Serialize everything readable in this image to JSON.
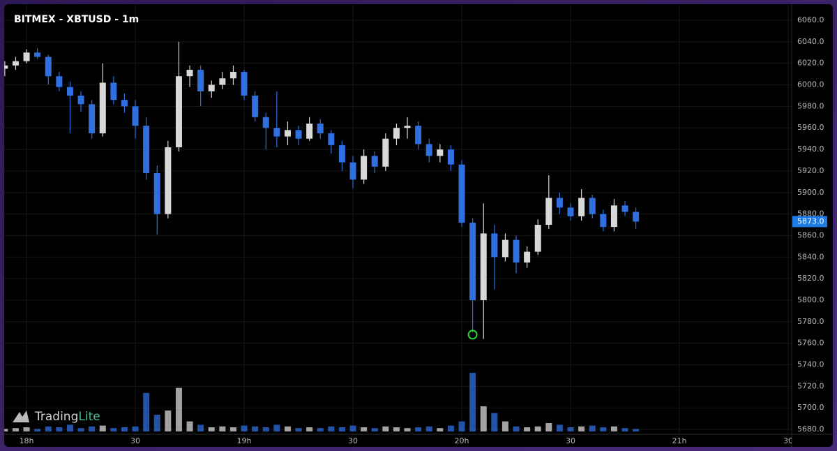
{
  "chart_data": {
    "type": "candlestick",
    "title": "BITMEX - XBTUSD - 1m",
    "watermark": [
      "Trading",
      "Lite"
    ],
    "x": [
      17.9,
      17.95,
      18,
      18.05,
      18.1,
      18.15,
      18.2,
      18.25,
      18.3,
      18.35,
      18.4,
      18.45,
      18.5,
      18.55,
      18.6,
      18.65,
      18.7,
      18.75,
      18.8,
      18.85,
      18.9,
      18.95,
      19,
      19.05,
      19.1,
      19.15,
      19.2,
      19.25,
      19.3,
      19.35,
      19.4,
      19.45,
      19.5,
      19.55,
      19.6,
      19.65,
      19.7,
      19.75,
      19.8,
      19.85,
      19.9,
      19.95,
      20,
      20.05,
      20.1,
      20.15,
      20.2,
      20.25,
      20.3,
      20.35,
      20.4,
      20.45,
      20.5,
      20.55,
      20.6,
      20.65,
      20.7,
      20.75,
      20.8
    ],
    "open": [
      6015,
      6018,
      6022,
      6030,
      6026,
      6008,
      5998,
      5990,
      5982,
      5955,
      6002,
      5986,
      5980,
      5962,
      5918,
      5880,
      5942,
      6008,
      6014,
      5994,
      6000,
      6006,
      6012,
      5990,
      5970,
      5960,
      5952,
      5958,
      5950,
      5964,
      5955,
      5944,
      5928,
      5912,
      5934,
      5924,
      5950,
      5960,
      5962,
      5945,
      5934,
      5940,
      5926,
      5872,
      5800,
      5862,
      5840,
      5856,
      5835,
      5845,
      5870,
      5895,
      5886,
      5878,
      5895,
      5880,
      5868,
      5888,
      5882
    ],
    "high": [
      6022,
      6026,
      6033,
      6034,
      6028,
      6012,
      6003,
      5994,
      5986,
      6020,
      6008,
      5992,
      5986,
      5970,
      5925,
      5948,
      6040,
      6018,
      6018,
      6004,
      6012,
      6018,
      6014,
      5994,
      5974,
      5994,
      5966,
      5962,
      5970,
      5968,
      5958,
      5948,
      5934,
      5940,
      5938,
      5955,
      5964,
      5970,
      5966,
      5950,
      5945,
      5944,
      5930,
      5876,
      5890,
      5870,
      5862,
      5860,
      5850,
      5875,
      5916,
      5900,
      5890,
      5903,
      5898,
      5884,
      5894,
      5892,
      5886
    ],
    "low": [
      6008,
      6014,
      6020,
      6024,
      6000,
      5994,
      5955,
      5975,
      5950,
      5952,
      5982,
      5974,
      5950,
      5912,
      5861,
      5876,
      5938,
      5998,
      5980,
      5988,
      5996,
      6000,
      5986,
      5966,
      5940,
      5942,
      5944,
      5944,
      5948,
      5950,
      5936,
      5920,
      5904,
      5908,
      5918,
      5920,
      5944,
      5950,
      5940,
      5928,
      5928,
      5920,
      5868,
      5770,
      5764,
      5810,
      5836,
      5825,
      5830,
      5842,
      5866,
      5880,
      5874,
      5874,
      5876,
      5864,
      5864,
      5878,
      5866
    ],
    "close": [
      6018,
      6022,
      6030,
      6026,
      6008,
      5998,
      5990,
      5982,
      5955,
      6002,
      5986,
      5980,
      5962,
      5918,
      5880,
      5942,
      6008,
      6014,
      5994,
      6000,
      6006,
      6012,
      5990,
      5970,
      5960,
      5952,
      5958,
      5950,
      5964,
      5955,
      5944,
      5928,
      5912,
      5934,
      5924,
      5950,
      5960,
      5962,
      5945,
      5934,
      5940,
      5926,
      5872,
      5800,
      5862,
      5840,
      5856,
      5835,
      5845,
      5870,
      5895,
      5886,
      5878,
      5895,
      5880,
      5868,
      5888,
      5882,
      5873
    ],
    "volume": [
      3,
      4,
      5,
      3,
      6,
      5,
      8,
      4,
      6,
      7,
      4,
      5,
      6,
      46,
      20,
      25,
      52,
      12,
      8,
      5,
      6,
      5,
      7,
      6,
      5,
      8,
      6,
      4,
      5,
      4,
      6,
      5,
      7,
      5,
      4,
      6,
      5,
      4,
      5,
      6,
      4,
      7,
      12,
      70,
      30,
      22,
      12,
      6,
      5,
      6,
      10,
      8,
      5,
      6,
      7,
      5,
      6,
      4,
      3
    ],
    "up_color": "#d8d8d8",
    "down_color": "#2f6fe0",
    "xlim": [
      17.878,
      21.516
    ],
    "xticks": [
      {
        "value": 18,
        "label": "18h"
      },
      {
        "value": 18.5,
        "label": "30"
      },
      {
        "value": 19,
        "label": "19h"
      },
      {
        "value": 19.5,
        "label": "30"
      },
      {
        "value": 20,
        "label": "20h"
      },
      {
        "value": 20.5,
        "label": "30"
      },
      {
        "value": 21,
        "label": "21h"
      },
      {
        "value": 21.5,
        "label": "30"
      }
    ],
    "ylim": [
      5675.5,
      6078.8
    ],
    "yticks": [
      {
        "value": 5680,
        "label": "5680.0"
      },
      {
        "value": 5700,
        "label": "5700.0"
      },
      {
        "value": 5720,
        "label": "5720.0"
      },
      {
        "value": 5740,
        "label": "5740.0"
      },
      {
        "value": 5760,
        "label": "5760.0"
      },
      {
        "value": 5780,
        "label": "5780.0"
      },
      {
        "value": 5800,
        "label": "5800.0"
      },
      {
        "value": 5820,
        "label": "5820.0"
      },
      {
        "value": 5840,
        "label": "5840.0"
      },
      {
        "value": 5860,
        "label": "5860.0"
      },
      {
        "value": 5880,
        "label": "5880.0"
      },
      {
        "value": 5900,
        "label": "5900.0"
      },
      {
        "value": 5920,
        "label": "5920.0"
      },
      {
        "value": 5940,
        "label": "5940.0"
      },
      {
        "value": 5960,
        "label": "5960.0"
      },
      {
        "value": 5980,
        "label": "5980.0"
      },
      {
        "value": 6000,
        "label": "6000.0"
      },
      {
        "value": 6020,
        "label": "6020.0"
      },
      {
        "value": 6040,
        "label": "6040.0"
      },
      {
        "value": 6060,
        "label": "6060.0"
      }
    ],
    "y2lim": [
      0,
      100
    ],
    "last_price": {
      "value": 5873,
      "label": "5873.0"
    },
    "marker": {
      "x": 20.05,
      "y": 5768
    },
    "grid": true
  }
}
